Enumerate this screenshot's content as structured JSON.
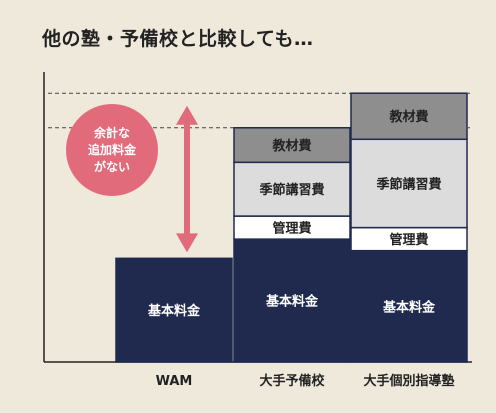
{
  "title": "他の塾・予備校と比較しても…",
  "annotation": [
    "余計な",
    "追加料金",
    "がない"
  ],
  "chart_data": {
    "type": "bar",
    "stacked": true,
    "categories": [
      "WAM",
      "大手予備校",
      "大手個別指導塾"
    ],
    "segments": [
      {
        "name": "基本料金",
        "values": [
          27,
          32,
          29
        ]
      },
      {
        "name": "管理費",
        "values": [
          0,
          6,
          6
        ]
      },
      {
        "name": "季節講習費",
        "values": [
          0,
          14,
          23
        ]
      },
      {
        "name": "教材費",
        "values": [
          0,
          9,
          12
        ]
      }
    ],
    "totals": [
      27,
      61,
      70
    ],
    "ylim": [
      0,
      75
    ],
    "reference_lines": [
      61,
      70
    ],
    "colors": {
      "基本料金": "#1f2a4e",
      "管理費": "#ffffff",
      "季節講習費": "#dcdcdc",
      "教材費": "#8e8e8e",
      "arrow": "#e26b7b",
      "bubble": "#e26b7b"
    },
    "axes": {
      "x_axis": true,
      "y_axis": true,
      "ticks": false
    }
  }
}
